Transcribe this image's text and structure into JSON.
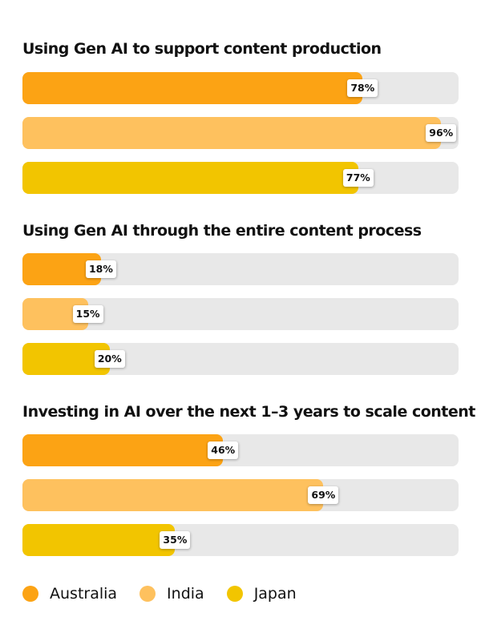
{
  "chart_data": {
    "type": "bar",
    "orientation": "horizontal",
    "xlim": [
      0,
      100
    ],
    "series_names": [
      "Australia",
      "India",
      "Japan"
    ],
    "colors": {
      "Australia": "#fca314",
      "India": "#fec15e",
      "Japan": "#f2c500",
      "track": "#e8e8e8"
    },
    "groups": [
      {
        "title": "Using Gen AI to support content production",
        "values": [
          78,
          96,
          77
        ],
        "labels": [
          "78%",
          "96%",
          "77%"
        ]
      },
      {
        "title": "Using Gen AI through the entire content process",
        "values": [
          18,
          15,
          20
        ],
        "labels": [
          "18%",
          "15%",
          "20%"
        ]
      },
      {
        "title": "Investing in AI over the next 1–3 years to scale content",
        "values": [
          46,
          69,
          35
        ],
        "labels": [
          "46%",
          "69%",
          "35%"
        ]
      }
    ],
    "legend": {
      "position": "bottom-left",
      "items": [
        "Australia",
        "India",
        "Japan"
      ]
    }
  }
}
